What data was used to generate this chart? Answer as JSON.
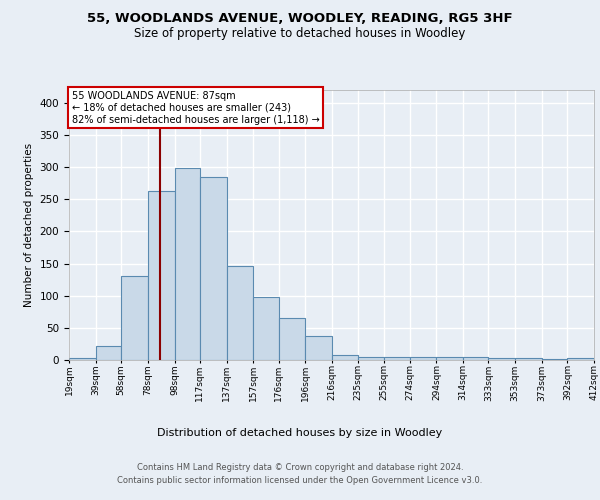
{
  "title1": "55, WOODLANDS AVENUE, WOODLEY, READING, RG5 3HF",
  "title2": "Size of property relative to detached houses in Woodley",
  "xlabel": "Distribution of detached houses by size in Woodley",
  "ylabel": "Number of detached properties",
  "footnote1": "Contains HM Land Registry data © Crown copyright and database right 2024.",
  "footnote2": "Contains public sector information licensed under the Open Government Licence v3.0.",
  "annotation_line1": "55 WOODLANDS AVENUE: 87sqm",
  "annotation_line2": "← 18% of detached houses are smaller (243)",
  "annotation_line3": "82% of semi-detached houses are larger (1,118) →",
  "property_size": 87,
  "bin_edges": [
    19,
    39,
    58,
    78,
    98,
    117,
    137,
    157,
    176,
    196,
    216,
    235,
    255,
    274,
    294,
    314,
    333,
    353,
    373,
    392,
    412
  ],
  "bin_counts": [
    3,
    22,
    130,
    263,
    299,
    285,
    147,
    98,
    65,
    37,
    8,
    5,
    5,
    4,
    5,
    4,
    3,
    3,
    1,
    3
  ],
  "bar_color": "#c9d9e8",
  "bar_edge_color": "#5a8ab0",
  "vline_color": "#8b0000",
  "vline_x": 87,
  "annotation_box_color": "#ffffff",
  "annotation_box_edge_color": "#cc0000",
  "bg_color": "#e8eef5",
  "grid_color": "#ffffff",
  "ylim": [
    0,
    420
  ],
  "yticks": [
    0,
    50,
    100,
    150,
    200,
    250,
    300,
    350,
    400
  ]
}
